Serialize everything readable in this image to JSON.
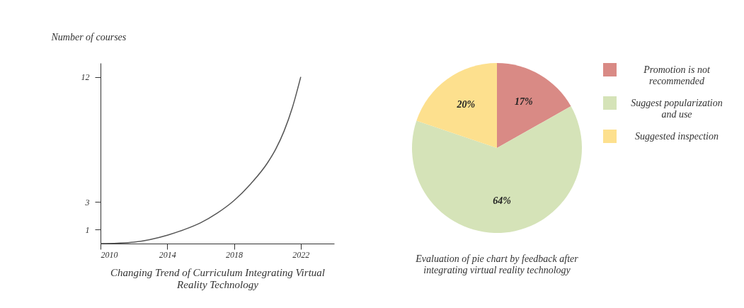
{
  "chart_data": [
    {
      "type": "line",
      "xlabel": "Changing Trend of Curriculum Integrating Virtual Reality Technology",
      "ylabel": "Number of courses",
      "x": [
        2010,
        2011,
        2012,
        2014,
        2015,
        2016,
        2017,
        2018,
        2019,
        2020,
        2020.5,
        2021,
        2021.5,
        2022
      ],
      "series": [
        {
          "color": "#555555",
          "values": [
            0,
            0.03,
            0.1,
            0.6,
            1.0,
            1.5,
            2.2,
            3.1,
            4.3,
            5.8,
            6.8,
            8.1,
            9.8,
            12
          ]
        }
      ],
      "xlim": [
        2010,
        2024
      ],
      "xticks": [
        2010,
        2014,
        2018,
        2022
      ],
      "ylim": [
        0,
        13
      ],
      "yticks": [
        1,
        3,
        12
      ],
      "grid": false,
      "marker": "none"
    },
    {
      "type": "pie",
      "title": "Evaluation of pie chart by feedback after integrating virtual reality technology",
      "categories": [
        "Promotion is not recommended",
        "Suggest popularization and use",
        "Suggested inspection"
      ],
      "values": [
        17,
        64,
        20
      ],
      "colors": [
        "#d98a85",
        "#d5e3b8",
        "#fde08e"
      ],
      "value_labels": [
        "17%",
        "64%",
        "20%"
      ],
      "legend": "right"
    }
  ]
}
